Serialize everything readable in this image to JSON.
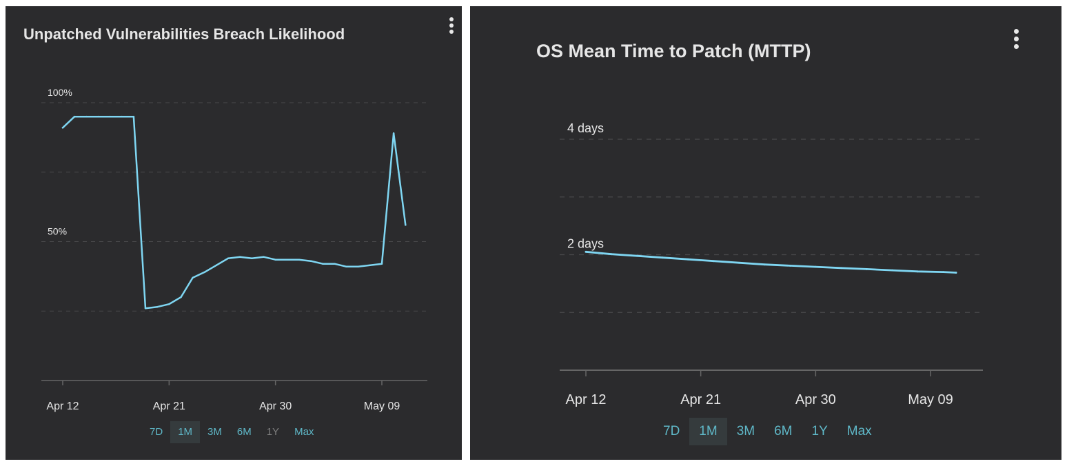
{
  "colors": {
    "panel_bg": "#2b2b2d",
    "line": "#7fd6f2",
    "grid": "#4a4a4c",
    "axis": "#666666",
    "tick_text": "#e6e6e6",
    "range_link": "#5fb8c8",
    "range_dim": "#7e7e7e",
    "range_active_bg": "#353b3d"
  },
  "icons": {
    "menu": "vertical-ellipsis-icon"
  },
  "left_panel": {
    "title": "Unpatched Vulnerabilities Breach Likelihood",
    "menu_icon": "vertical-ellipsis-icon",
    "ranges": [
      {
        "label": "7D",
        "state": "normal"
      },
      {
        "label": "1M",
        "state": "active"
      },
      {
        "label": "3M",
        "state": "normal"
      },
      {
        "label": "6M",
        "state": "normal"
      },
      {
        "label": "1Y",
        "state": "disabled"
      },
      {
        "label": "Max",
        "state": "normal"
      }
    ]
  },
  "right_panel": {
    "title": "OS Mean Time to Patch (MTTP)",
    "menu_icon": "vertical-ellipsis-icon",
    "ranges": [
      {
        "label": "7D",
        "state": "normal"
      },
      {
        "label": "1M",
        "state": "active"
      },
      {
        "label": "3M",
        "state": "normal"
      },
      {
        "label": "6M",
        "state": "normal"
      },
      {
        "label": "1Y",
        "state": "normal"
      },
      {
        "label": "Max",
        "state": "normal"
      }
    ]
  },
  "chart_data": [
    {
      "type": "line",
      "title": "Unpatched Vulnerabilities Breach Likelihood",
      "x_tick_labels": [
        "Apr 12",
        "Apr 21",
        "Apr 30",
        "May 09"
      ],
      "x_tick_dates": [
        "2025-04-12",
        "2025-04-21",
        "2025-04-30",
        "2025-05-09"
      ],
      "y_tick_labels": [
        "100%",
        "50%"
      ],
      "ylim": [
        0,
        100
      ],
      "grid": true,
      "legend": "none",
      "x": [
        "2025-04-12",
        "2025-04-13",
        "2025-04-14",
        "2025-04-15",
        "2025-04-16",
        "2025-04-17",
        "2025-04-18",
        "2025-04-19",
        "2025-04-20",
        "2025-04-21",
        "2025-04-22",
        "2025-04-23",
        "2025-04-24",
        "2025-04-25",
        "2025-04-26",
        "2025-04-27",
        "2025-04-28",
        "2025-04-29",
        "2025-04-30",
        "2025-05-01",
        "2025-05-02",
        "2025-05-03",
        "2025-05-04",
        "2025-05-05",
        "2025-05-06",
        "2025-05-07",
        "2025-05-08",
        "2025-05-09",
        "2025-05-10",
        "2025-05-11"
      ],
      "values": [
        91,
        95,
        95,
        95,
        95,
        95,
        95,
        26,
        26.5,
        27.5,
        30,
        37,
        39,
        41.5,
        44,
        44.5,
        44,
        44.5,
        43.5,
        43.5,
        43.5,
        43,
        42,
        42,
        41,
        41,
        41.5,
        42,
        89,
        56
      ]
    },
    {
      "type": "line",
      "title": "OS Mean Time to Patch (MTTP)",
      "x_tick_labels": [
        "Apr 12",
        "Apr 21",
        "Apr 30",
        "May 09"
      ],
      "x_tick_dates": [
        "2025-04-12",
        "2025-04-21",
        "2025-04-30",
        "2025-05-09"
      ],
      "y_tick_labels": [
        "4 days",
        "2 days"
      ],
      "ylim": [
        0,
        4
      ],
      "grid": true,
      "legend": "none",
      "x": [
        "2025-04-12",
        "2025-04-14",
        "2025-04-16",
        "2025-04-18",
        "2025-04-20",
        "2025-04-22",
        "2025-04-24",
        "2025-04-26",
        "2025-04-28",
        "2025-04-30",
        "2025-05-02",
        "2025-05-04",
        "2025-05-06",
        "2025-05-08",
        "2025-05-10",
        "2025-05-11"
      ],
      "values": [
        2.05,
        2.01,
        1.98,
        1.95,
        1.92,
        1.89,
        1.86,
        1.83,
        1.81,
        1.79,
        1.77,
        1.75,
        1.73,
        1.71,
        1.7,
        1.69
      ]
    }
  ]
}
